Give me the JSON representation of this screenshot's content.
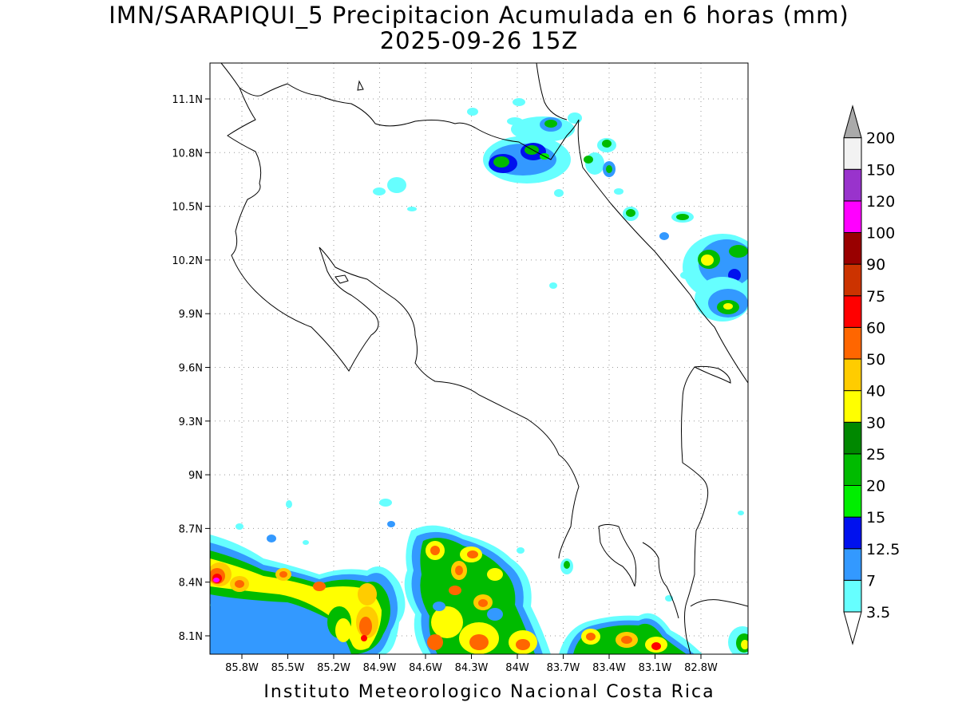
{
  "title": {
    "line1": "IMN/SARAPIQUI_5 Precipitacion Acumulada en 6 horas (mm)",
    "line2": "2025-09-26 15Z"
  },
  "footer": "Instituto Meteorologico Nacional Costa Rica",
  "axes": {
    "lat_ticks": [
      "11.1N",
      "10.8N",
      "10.5N",
      "10.2N",
      "9.9N",
      "9.6N",
      "9.3N",
      "9N",
      "8.7N",
      "8.4N",
      "8.1N"
    ],
    "lon_ticks": [
      "85.8W",
      "85.5W",
      "85.2W",
      "84.9W",
      "84.6W",
      "84.3W",
      "84W",
      "83.7W",
      "83.4W",
      "83.1W",
      "82.8W"
    ],
    "grid": true
  },
  "colorbar": {
    "levels": [
      "3.5",
      "7",
      "12.5",
      "15",
      "20",
      "25",
      "30",
      "40",
      "50",
      "60",
      "75",
      "90",
      "100",
      "120",
      "150",
      "200"
    ],
    "colors": [
      "#66ffff",
      "#3399ff",
      "#0011ee",
      "#00ee00",
      "#00bb00",
      "#008800",
      "#ffff00",
      "#ffcc00",
      "#ff6600",
      "#ff0000",
      "#cc3300",
      "#990000",
      "#ff00ff",
      "#9933cc",
      "#f2f2f2",
      "#aaaaaa"
    ]
  }
}
